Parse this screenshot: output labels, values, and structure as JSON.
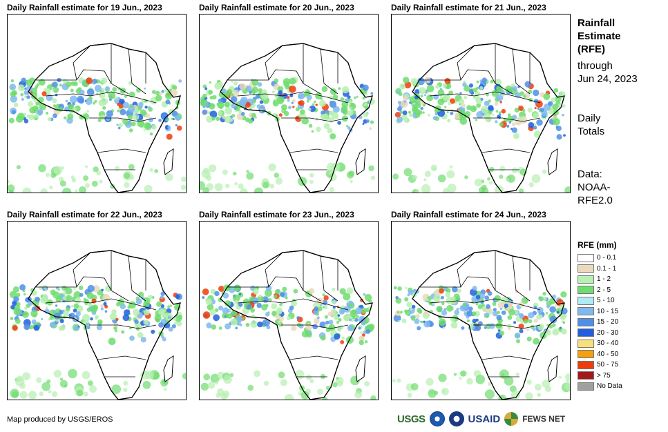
{
  "panels": [
    {
      "title": "Daily Rainfall estimate for 19 Jun., 2023"
    },
    {
      "title": "Daily Rainfall estimate for 20 Jun., 2023"
    },
    {
      "title": "Daily Rainfall estimate for 21 Jun., 2023"
    },
    {
      "title": "Daily Rainfall estimate for 22 Jun., 2023"
    },
    {
      "title": "Daily Rainfall estimate for 23 Jun., 2023"
    },
    {
      "title": "Daily Rainfall estimate for 24 Jun., 2023"
    }
  ],
  "side": {
    "title_lines": [
      "Rainfall",
      "Estimate",
      "(RFE)"
    ],
    "through_lines": [
      "through",
      "Jun 24, 2023"
    ],
    "totals_lines": [
      "Daily",
      "Totals"
    ],
    "data_lines": [
      "Data:",
      "NOAA-",
      "RFE2.0"
    ]
  },
  "legend": {
    "title": "RFE (mm)",
    "items": [
      {
        "label": "0 - 0.1",
        "color": "#ffffff"
      },
      {
        "label": "0.1 - 1",
        "color": "#ead9bd"
      },
      {
        "label": "1 - 2",
        "color": "#b7f0b0"
      },
      {
        "label": "2 - 5",
        "color": "#6fdc6f"
      },
      {
        "label": "5 - 10",
        "color": "#b0eaf5"
      },
      {
        "label": "10 - 15",
        "color": "#7fb9ee"
      },
      {
        "label": "15 - 20",
        "color": "#4f8fe8"
      },
      {
        "label": "20 - 30",
        "color": "#1f5fe0"
      },
      {
        "label": "30 - 40",
        "color": "#f7e07a"
      },
      {
        "label": "40 - 50",
        "color": "#f5a00f"
      },
      {
        "label": "50 - 75",
        "color": "#f03c0a"
      },
      {
        "label": "> 75",
        "color": "#a31818"
      },
      {
        "label": "No Data",
        "color": "#a0a0a0"
      }
    ]
  },
  "footer": {
    "credit": "Map produced by USGS/EROS",
    "logos": {
      "usgs": "USGS",
      "usaid": "USAID",
      "fews": "FEWS NET"
    }
  }
}
